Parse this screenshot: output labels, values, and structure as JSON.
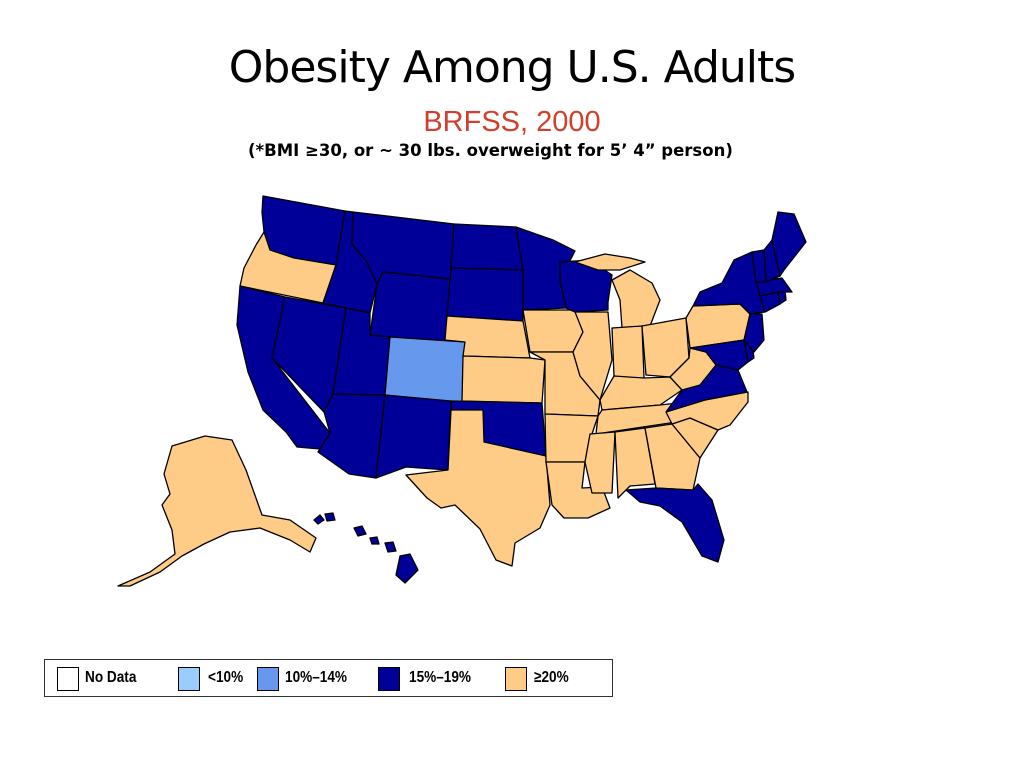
{
  "slide": {
    "title": "Obesity Among U.S. Adults",
    "subtitle": "BRFSS, 2000",
    "note": "(*BMI ≥30, or ~ 30 lbs. overweight for 5’ 4” person)"
  },
  "legend": [
    {
      "label": "No Data",
      "color": "#ffffff"
    },
    {
      "label": "<10%",
      "color": "#99ccff"
    },
    {
      "label": "10%–14%",
      "color": "#6699ee"
    },
    {
      "label": "15%–19%",
      "color": "#000099"
    },
    {
      "label": "≥20%",
      "color": "#ffcc88"
    }
  ],
  "colors": {
    "cat_15_19": "#000099",
    "cat_20_plus": "#ffcc88",
    "cat_10_14": "#6699ee"
  },
  "states": {
    "WA": "15–19",
    "OR": "≥20",
    "CA": "15–19",
    "NV": "15–19",
    "ID": "15–19",
    "MT": "15–19",
    "WY": "15–19",
    "UT": "15–19",
    "AZ": "15–19",
    "CO": "10–14",
    "NM": "15–19",
    "ND": "15–19",
    "SD": "15–19",
    "NE": "≥20",
    "KS": "≥20",
    "OK": "15–19",
    "TX": "≥20",
    "MN": "15–19",
    "IA": "≥20",
    "MO": "≥20",
    "AR": "≥20",
    "LA": "≥20",
    "WI": "15–19",
    "IL": "≥20",
    "MI": "≥20",
    "IN": "≥20",
    "OH": "≥20",
    "KY": "≥20",
    "TN": "≥20",
    "MS": "≥20",
    "AL": "≥20",
    "GA": "≥20",
    "FL": "15–19",
    "SC": "≥20",
    "NC": "≥20",
    "VA": "15–19",
    "WV": "≥20",
    "PA": "≥20",
    "NY": "15–19",
    "VT": "15–19",
    "NH": "15–19",
    "ME": "15–19",
    "MA": "15–19",
    "RI": "15–19",
    "CT": "15–19",
    "NJ": "15–19",
    "DE": "15–19",
    "MD": "15–19",
    "AK": "≥20",
    "HI": "15–19"
  }
}
